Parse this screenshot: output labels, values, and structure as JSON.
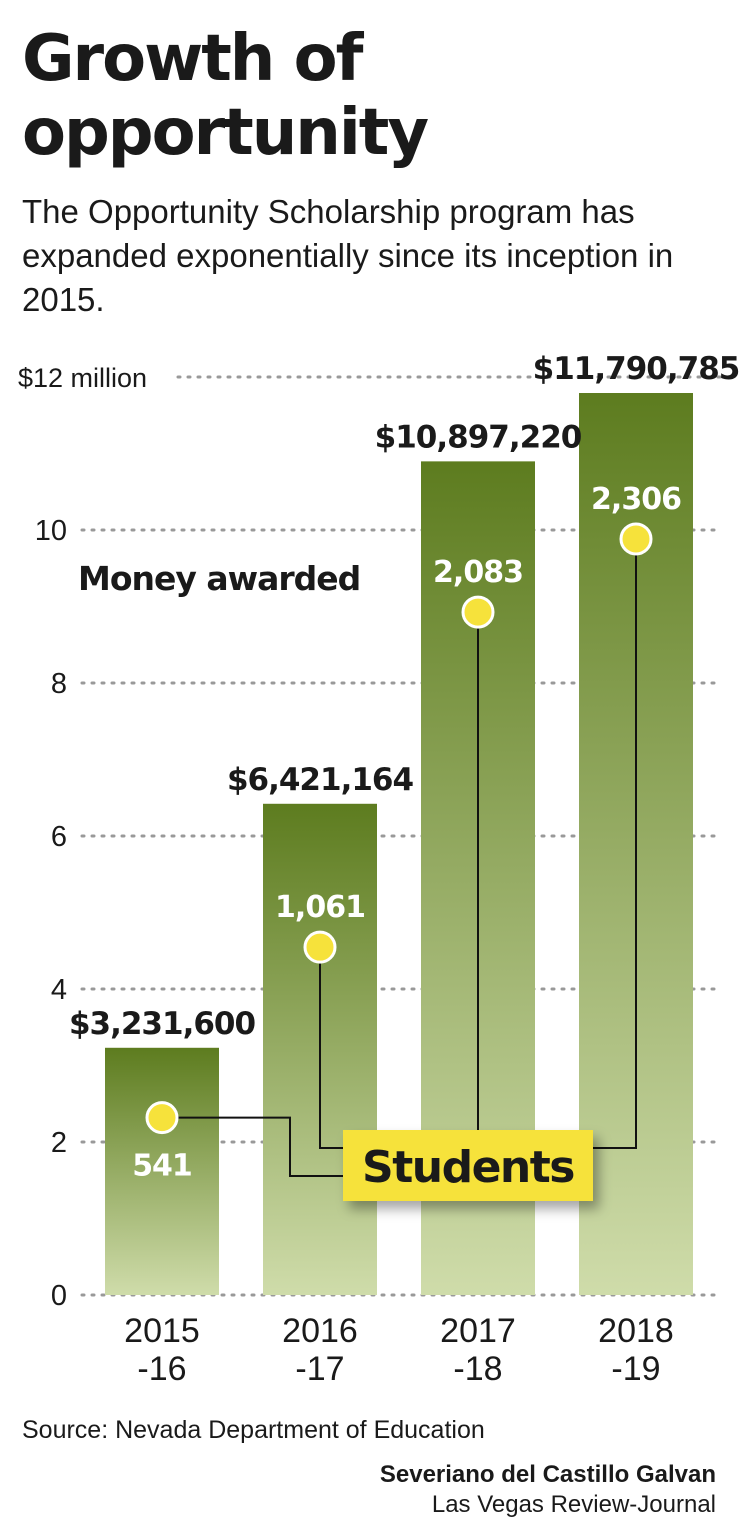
{
  "title": "Growth of opportunity",
  "subtitle": "The Opportunity Scholarship program has expanded exponentially since its inception in 2015.",
  "source": "Source: Nevada Department of Education",
  "credit": {
    "name": "Severiano del Castillo Galvan",
    "organization": "Las Vegas Review-Journal"
  },
  "chart_data": {
    "type": "bar",
    "categories": [
      [
        "2015",
        "-16"
      ],
      [
        "2016",
        "-17"
      ],
      [
        "2017",
        "-18"
      ],
      [
        "2018",
        "-19"
      ]
    ],
    "series": [
      {
        "name": "Money awarded",
        "values": [
          3231600,
          6421164,
          10897220,
          11790785
        ],
        "labels": [
          "$3,231,600",
          "$6,421,164",
          "$10,897,220",
          "$11,790,785"
        ]
      },
      {
        "name": "Students",
        "values": [
          541,
          1061,
          2083,
          2306
        ],
        "labels": [
          "541",
          "1,061",
          "2,083",
          "2,306"
        ]
      }
    ],
    "y_ticks": [
      0,
      2,
      4,
      6,
      8,
      10,
      12
    ],
    "y_tick_labels": [
      "0",
      "2",
      "4",
      "6",
      "8",
      "10",
      "$12 million"
    ],
    "ylim": [
      0,
      12000000
    ],
    "students_ylim": [
      0,
      2800
    ],
    "grid": true,
    "colors": {
      "bar_top": "#5d7c1f",
      "bar_bottom": "#cfdcaa",
      "marker": "#f6e23b",
      "students_box": "#f6e23b",
      "grid": "#999999"
    }
  }
}
